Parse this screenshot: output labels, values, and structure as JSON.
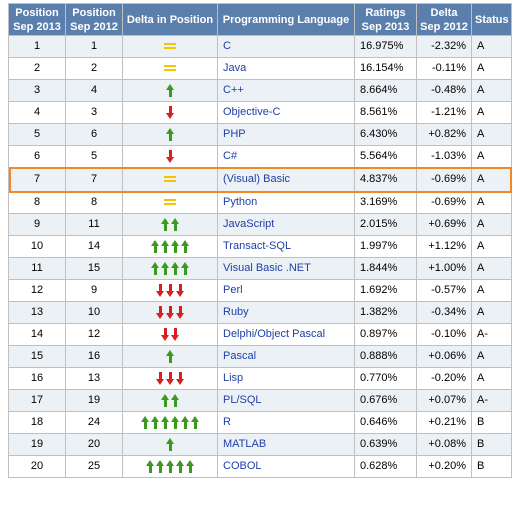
{
  "headers": {
    "pos2013": [
      "Position",
      "Sep 2013"
    ],
    "pos2012": [
      "Position",
      "Sep 2012"
    ],
    "delta_pos": "Delta in Position",
    "language": "Programming Language",
    "ratings": [
      "Ratings",
      "Sep 2013"
    ],
    "delta": [
      "Delta",
      "Sep 2012"
    ],
    "status": "Status"
  },
  "highlight_color": "#f08a24",
  "rows": [
    {
      "p13": "1",
      "p12": "1",
      "icon": "equal-icon",
      "lang": "C",
      "rating": "16.975%",
      "delta": "-2.32%",
      "status": "A"
    },
    {
      "p13": "2",
      "p12": "2",
      "icon": "equal-icon",
      "lang": "Java",
      "rating": "16.154%",
      "delta": "-0.11%",
      "status": "A"
    },
    {
      "p13": "3",
      "p12": "4",
      "icon": "up-arrow-icon",
      "lang": "C++",
      "rating": "8.664%",
      "delta": "-0.48%",
      "status": "A"
    },
    {
      "p13": "4",
      "p12": "3",
      "icon": "down-arrow-icon",
      "lang": "Objective-C",
      "rating": "8.561%",
      "delta": "-1.21%",
      "status": "A"
    },
    {
      "p13": "5",
      "p12": "6",
      "icon": "up-arrow-icon",
      "lang": "PHP",
      "rating": "6.430%",
      "delta": "+0.82%",
      "status": "A"
    },
    {
      "p13": "6",
      "p12": "5",
      "icon": "down-arrow-icon",
      "lang": "C#",
      "rating": "5.564%",
      "delta": "-1.03%",
      "status": "A"
    },
    {
      "p13": "7",
      "p12": "7",
      "icon": "equal-icon",
      "lang": "(Visual) Basic",
      "rating": "4.837%",
      "delta": "-0.69%",
      "status": "A",
      "highlighted": true
    },
    {
      "p13": "8",
      "p12": "8",
      "icon": "equal-icon",
      "lang": "Python",
      "rating": "3.169%",
      "delta": "-0.69%",
      "status": "A"
    },
    {
      "p13": "9",
      "p12": "11",
      "icon": "up-arrow-icon",
      "lang": "JavaScript",
      "rating": "2.015%",
      "delta": "+0.69%",
      "status": "A"
    },
    {
      "p13": "10",
      "p12": "14",
      "icon": "up-arrow-icon",
      "lang": "Transact-SQL",
      "rating": "1.997%",
      "delta": "+1.12%",
      "status": "A"
    },
    {
      "p13": "11",
      "p12": "15",
      "icon": "up-arrow-icon",
      "lang": "Visual Basic .NET",
      "rating": "1.844%",
      "delta": "+1.00%",
      "status": "A"
    },
    {
      "p13": "12",
      "p12": "9",
      "icon": "down-arrow-icon",
      "lang": "Perl",
      "rating": "1.692%",
      "delta": "-0.57%",
      "status": "A"
    },
    {
      "p13": "13",
      "p12": "10",
      "icon": "down-arrow-icon",
      "lang": "Ruby",
      "rating": "1.382%",
      "delta": "-0.34%",
      "status": "A"
    },
    {
      "p13": "14",
      "p12": "12",
      "icon": "down-arrow-icon",
      "lang": "Delphi/Object Pascal",
      "rating": "0.897%",
      "delta": "-0.10%",
      "status": "A-"
    },
    {
      "p13": "15",
      "p12": "16",
      "icon": "up-arrow-icon",
      "lang": "Pascal",
      "rating": "0.888%",
      "delta": "+0.06%",
      "status": "A"
    },
    {
      "p13": "16",
      "p12": "13",
      "icon": "down-arrow-icon",
      "lang": "Lisp",
      "rating": "0.770%",
      "delta": "-0.20%",
      "status": "A"
    },
    {
      "p13": "17",
      "p12": "19",
      "icon": "up-arrow-icon",
      "lang": "PL/SQL",
      "rating": "0.676%",
      "delta": "+0.07%",
      "status": "A-"
    },
    {
      "p13": "18",
      "p12": "24",
      "icon": "up-arrow-icon",
      "lang": "R",
      "rating": "0.646%",
      "delta": "+0.21%",
      "status": "B"
    },
    {
      "p13": "19",
      "p12": "20",
      "icon": "up-arrow-icon",
      "lang": "MATLAB",
      "rating": "0.639%",
      "delta": "+0.08%",
      "status": "B"
    },
    {
      "p13": "20",
      "p12": "25",
      "icon": "up-arrow-icon",
      "lang": "COBOL",
      "rating": "0.628%",
      "delta": "+0.20%",
      "status": "B"
    }
  ]
}
